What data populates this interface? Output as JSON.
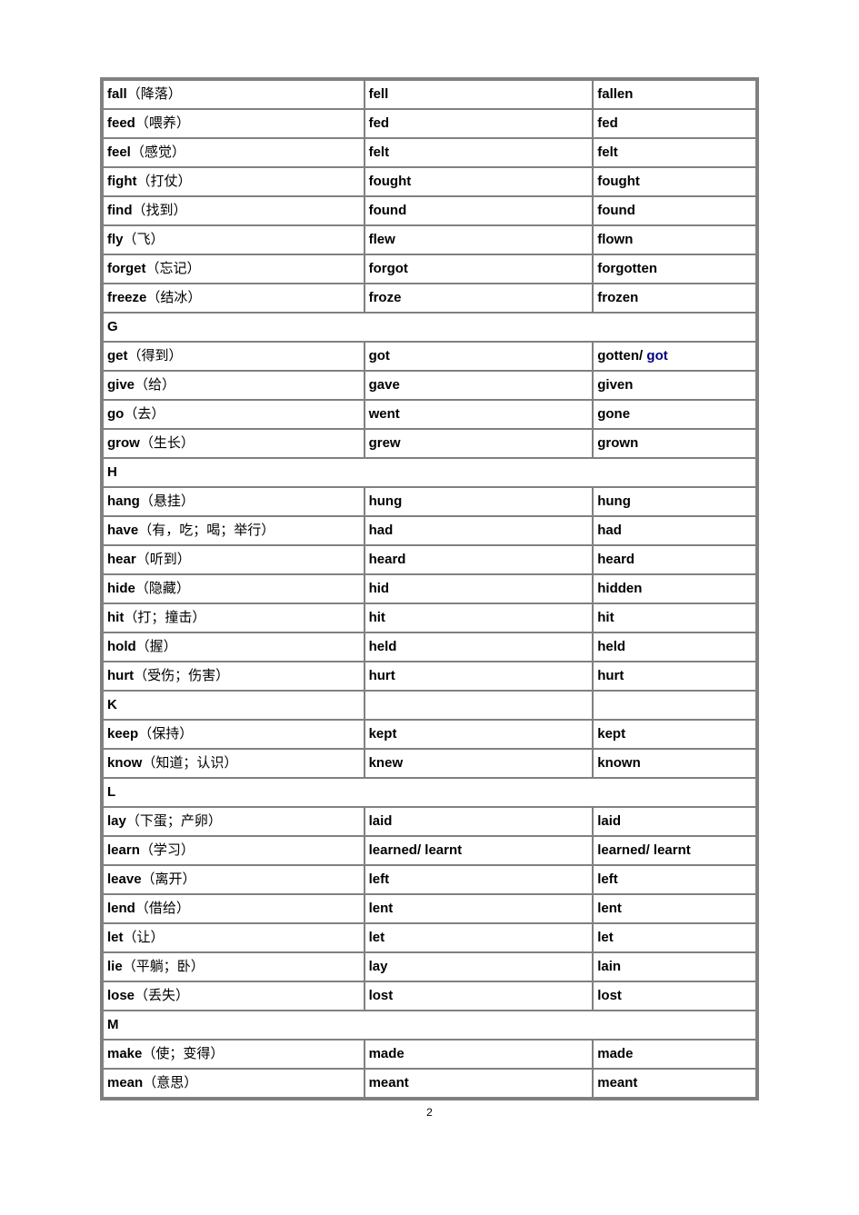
{
  "page_number": "2",
  "table": {
    "border_color": "#808080",
    "outer_border_width": 3,
    "inner_border_width": 1,
    "background_color": "#ffffff",
    "text_color": "#000000",
    "alt_text_color": "#000080",
    "font_size": 15,
    "col_widths": [
      "40%",
      "35%",
      "25%"
    ],
    "rows": [
      {
        "type": "verb",
        "base": "fall",
        "cn": "（降落）",
        "past": "fell",
        "pp": "fallen"
      },
      {
        "type": "verb",
        "base": "feed",
        "cn": "（喂养）",
        "past": "fed",
        "pp": "fed"
      },
      {
        "type": "verb",
        "base": "feel",
        "cn": "（感觉）",
        "past": "felt",
        "pp": "felt"
      },
      {
        "type": "verb",
        "base": "fight",
        "cn": "（打仗）",
        "past": "fought",
        "pp": "fought"
      },
      {
        "type": "verb",
        "base": "find",
        "cn": "（找到）",
        "past": "found",
        "pp": "found"
      },
      {
        "type": "verb",
        "base": "fly",
        "cn": "（飞）",
        "past": "flew",
        "pp": "flown"
      },
      {
        "type": "verb",
        "base": "forget",
        "cn": "（忘记）",
        "past": "forgot",
        "pp": "forgotten"
      },
      {
        "type": "verb",
        "base": "freeze",
        "cn": "（结冰）",
        "past": "froze",
        "pp": "frozen"
      },
      {
        "type": "section",
        "label": "G"
      },
      {
        "type": "verb",
        "base": "get",
        "cn": "（得到）",
        "past": "got",
        "pp": "gotten/",
        "pp_alt": " got"
      },
      {
        "type": "verb",
        "base": "give",
        "cn": "（给）",
        "past": "gave",
        "pp": "given"
      },
      {
        "type": "verb",
        "base": "go",
        "cn": "（去）",
        "past": "went",
        "pp": "gone"
      },
      {
        "type": "verb",
        "base": "grow",
        "cn": "（生长）",
        "past": "grew",
        "pp": "grown"
      },
      {
        "type": "section",
        "label": "H"
      },
      {
        "type": "verb",
        "base": "hang",
        "cn": "（悬挂）",
        "past": "hung",
        "pp": "hung"
      },
      {
        "type": "verb",
        "base": "have",
        "cn": "（有，吃；喝；举行）",
        "past": "had",
        "pp": "had"
      },
      {
        "type": "verb",
        "base": "hear",
        "cn": "（听到）",
        "past": "heard",
        "pp": "heard"
      },
      {
        "type": "verb",
        "base": "hide",
        "cn": "（隐藏）",
        "past": "hid",
        "pp": "hidden"
      },
      {
        "type": "verb",
        "base": "hit",
        "cn": "（打；撞击）",
        "past": "hit",
        "pp": "hit"
      },
      {
        "type": "verb",
        "base": "hold",
        "cn": "（握）",
        "past": "held",
        "pp": "held"
      },
      {
        "type": "verb",
        "base": "hurt",
        "cn": "（受伤；伤害）",
        "past": "hurt",
        "pp": "hurt"
      },
      {
        "type": "section-3col",
        "label": "K"
      },
      {
        "type": "verb",
        "base": "keep",
        "cn": "（保持）",
        "past": "kept",
        "pp": "kept"
      },
      {
        "type": "verb",
        "base": "know",
        "cn": "（知道；认识）",
        "past": "knew",
        "pp": "known"
      },
      {
        "type": "section",
        "label": "L"
      },
      {
        "type": "verb",
        "base": "lay",
        "cn": "（下蛋；产卵）",
        "past": "laid",
        "pp": "laid"
      },
      {
        "type": "verb",
        "base": "learn",
        "cn": "（学习）",
        "past": "learned/ learnt",
        "pp": "learned/ learnt"
      },
      {
        "type": "verb",
        "base": "leave",
        "cn": "（离开）",
        "past": "left",
        "pp": "left"
      },
      {
        "type": "verb",
        "base": "lend",
        "cn": "（借给）",
        "past": "lent",
        "pp": "lent"
      },
      {
        "type": "verb",
        "base": "let",
        "cn": "（让）",
        "past": "let",
        "pp": "let"
      },
      {
        "type": "verb",
        "base": "lie",
        "cn": "（平躺；卧）",
        "past": "lay",
        "pp": "lain"
      },
      {
        "type": "verb",
        "base": "lose",
        "cn": "（丢失）",
        "past": "lost",
        "pp": "lost"
      },
      {
        "type": "section",
        "label": "M"
      },
      {
        "type": "verb",
        "base": "make",
        "cn": "（使；变得）",
        "past": "made",
        "pp": "made"
      },
      {
        "type": "verb",
        "base": "mean",
        "cn": "（意思）",
        "past": "meant",
        "pp": "meant"
      }
    ]
  }
}
